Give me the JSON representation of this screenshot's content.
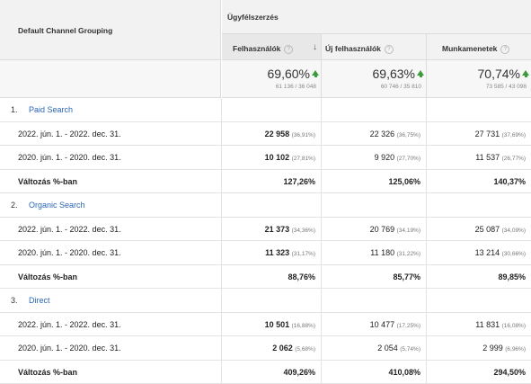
{
  "header": {
    "dimension": "Default Channel Grouping",
    "group": "Ügyfélszerzés",
    "columns": [
      {
        "label": "Felhasználók",
        "help": "?",
        "sort": "↓"
      },
      {
        "label": "Új felhasználók",
        "help": "?"
      },
      {
        "label": "Munkamenetek",
        "help": "?"
      }
    ]
  },
  "totals": [
    {
      "pct": "69,60%",
      "sub": "61 136 / 36 048"
    },
    {
      "pct": "69,63%",
      "sub": "60 746 / 35 810"
    },
    {
      "pct": "70,74%",
      "sub": "73 585 / 43 098"
    }
  ],
  "groups": [
    {
      "index": "1.",
      "channel": "Paid Search",
      "rows": [
        {
          "label": "2022. jún. 1. - 2022. dec. 31.",
          "v": [
            "22 958",
            "22 326",
            "27 731"
          ],
          "p": [
            "(36,91%)",
            "(36,75%)",
            "(37,69%)"
          ]
        },
        {
          "label": "2020. jún. 1. - 2020. dec. 31.",
          "v": [
            "10 102",
            "9 920",
            "11 537"
          ],
          "p": [
            "(27,81%)",
            "(27,70%)",
            "(26,77%)"
          ]
        }
      ],
      "change_label": "Változás %-ban",
      "change": [
        "127,26%",
        "125,06%",
        "140,37%"
      ]
    },
    {
      "index": "2.",
      "channel": "Organic Search",
      "rows": [
        {
          "label": "2022. jún. 1. - 2022. dec. 31.",
          "v": [
            "21 373",
            "20 769",
            "25 087"
          ],
          "p": [
            "(34,36%)",
            "(34,19%)",
            "(34,09%)"
          ]
        },
        {
          "label": "2020. jún. 1. - 2020. dec. 31.",
          "v": [
            "11 323",
            "11 180",
            "13 214"
          ],
          "p": [
            "(31,17%)",
            "(31,22%)",
            "(30,66%)"
          ]
        }
      ],
      "change_label": "Változás %-ban",
      "change": [
        "88,76%",
        "85,77%",
        "89,85%"
      ]
    },
    {
      "index": "3.",
      "channel": "Direct",
      "rows": [
        {
          "label": "2022. jún. 1. - 2022. dec. 31.",
          "v": [
            "10 501",
            "10 477",
            "11 831"
          ],
          "p": [
            "(16,88%)",
            "(17,25%)",
            "(16,08%)"
          ]
        },
        {
          "label": "2020. jún. 1. - 2020. dec. 31.",
          "v": [
            "2 062",
            "2 054",
            "2 999"
          ],
          "p": [
            "(5,68%)",
            "(5,74%)",
            "(6,96%)"
          ]
        }
      ],
      "change_label": "Változás %-ban",
      "change": [
        "409,26%",
        "410,08%",
        "294,50%"
      ]
    }
  ]
}
